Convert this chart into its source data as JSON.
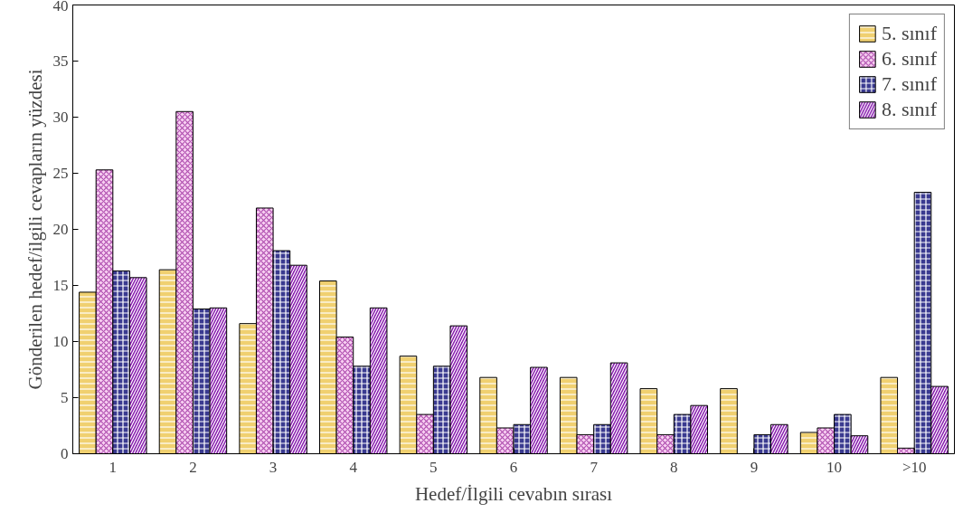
{
  "chart_data": {
    "type": "bar",
    "xlabel": "Hedef/İlgili cevabın sırası",
    "ylabel": "Gönderilen hedef/ilgili cevapların yüzdesi",
    "categories": [
      "1",
      "2",
      "3",
      "4",
      "5",
      "6",
      "7",
      "8",
      "9",
      "10",
      ">10"
    ],
    "series": [
      {
        "name": "5. sınıf",
        "color": "#f0d070",
        "values": [
          14.4,
          16.4,
          11.6,
          15.4,
          8.7,
          6.8,
          6.8,
          5.8,
          5.8,
          1.9,
          6.8
        ]
      },
      {
        "name": "6. sınıf",
        "color": "#f8d0f2",
        "values": [
          25.3,
          30.5,
          21.9,
          10.4,
          3.5,
          2.3,
          1.7,
          1.7,
          null,
          2.3,
          0.5
        ]
      },
      {
        "name": "7. sınıf",
        "color": "#3a3a90",
        "values": [
          16.3,
          12.9,
          18.1,
          7.8,
          7.8,
          2.6,
          2.6,
          3.5,
          1.7,
          3.5,
          23.3
        ]
      },
      {
        "name": "8. sınıf",
        "color": "#8a20b0",
        "values": [
          15.7,
          13.0,
          16.8,
          13.0,
          11.4,
          7.7,
          8.1,
          4.3,
          2.6,
          1.6,
          6.0
        ]
      }
    ],
    "ylim": [
      0,
      40
    ],
    "yticks": [
      0,
      5,
      10,
      15,
      20,
      25,
      30,
      35,
      40
    ],
    "grid": false,
    "legend": "top right"
  }
}
